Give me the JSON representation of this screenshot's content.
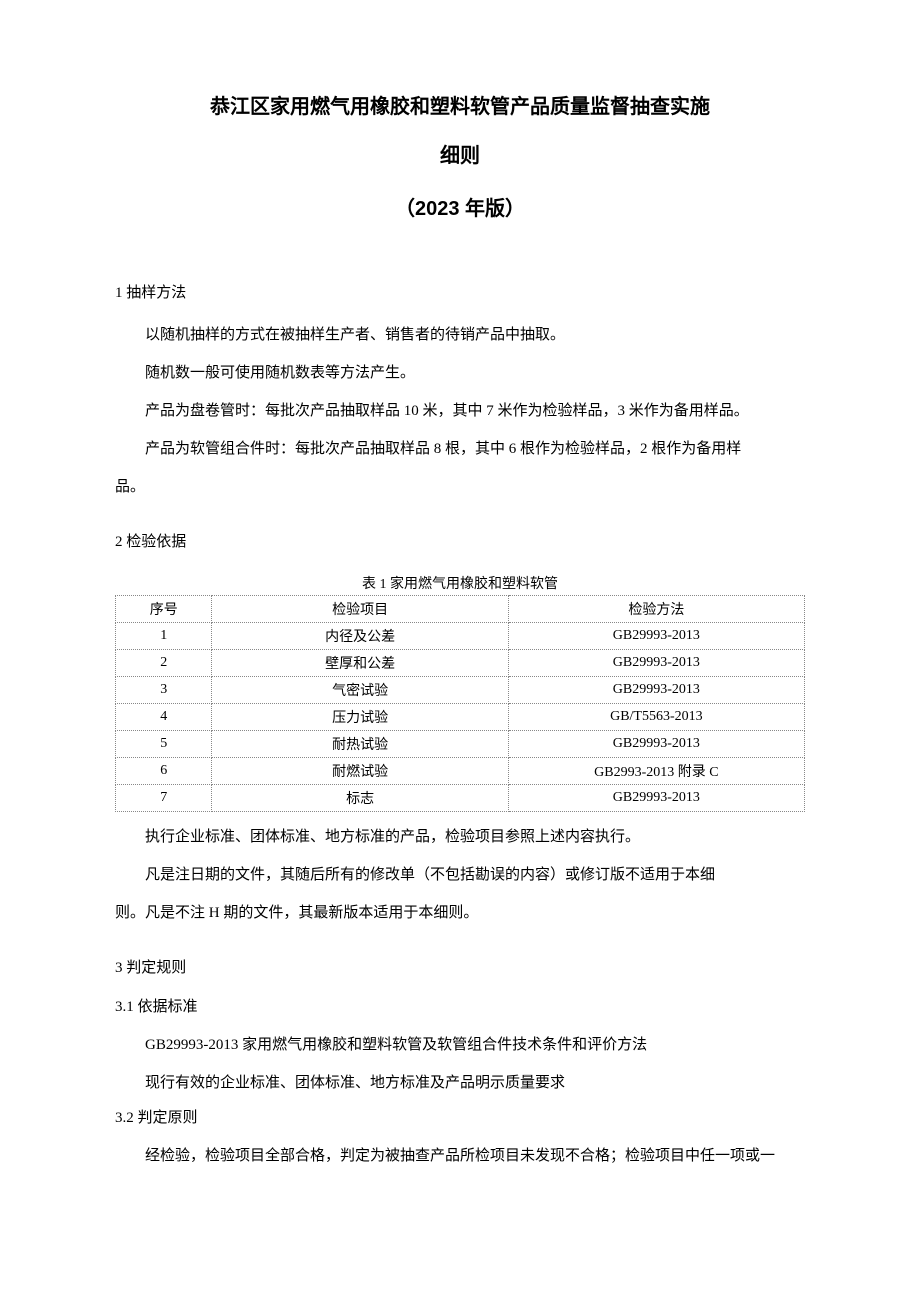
{
  "title": {
    "line1": "恭江区家用燃气用橡胶和塑料软管产品质量监督抽查实施",
    "line2": "细则",
    "version": "（2023 年版）"
  },
  "section1": {
    "heading": "1 抽样方法",
    "p1": "以随机抽样的方式在被抽样生产者、销售者的待销产品中抽取。",
    "p2": "随机数一般可使用随机数表等方法产生。",
    "p3": "产品为盘卷管时：每批次产品抽取样品 10 米，其中 7 米作为检验样品，3 米作为备用样品。",
    "p4": "产品为软管组合件时：每批次产品抽取样品 8 根，其中 6 根作为检验样品，2 根作为备用样",
    "p4_cont": "品。"
  },
  "section2": {
    "heading": "2 检验依据",
    "table_caption": "表 1 家用燃气用橡胶和塑料软管",
    "table": {
      "headers": {
        "seq": "序号",
        "item": "检验项目",
        "method": "检验方法"
      },
      "rows": [
        {
          "seq": "1",
          "item": "内径及公差",
          "method": "GB29993-2013"
        },
        {
          "seq": "2",
          "item": "壁厚和公差",
          "method": "GB29993-2013"
        },
        {
          "seq": "3",
          "item": "气密试验",
          "method": "GB29993-2013"
        },
        {
          "seq": "4",
          "item": "压力试验",
          "method": "GB/T5563-2013"
        },
        {
          "seq": "5",
          "item": "耐热试验",
          "method": "GB29993-2013"
        },
        {
          "seq": "6",
          "item": "耐燃试验",
          "method": "GB2993-2013 附录 C"
        },
        {
          "seq": "7",
          "item": "标志",
          "method": "GB29993-2013"
        }
      ]
    },
    "p1": "执行企业标准、团体标准、地方标准的产品，检验项目参照上述内容执行。",
    "p2": "凡是注日期的文件，其随后所有的修改单（不包括勘误的内容）或修订版不适用于本细",
    "p2_cont": "则。凡是不注 H 期的文件，其最新版本适用于本细则。"
  },
  "section3": {
    "heading": "3 判定规则",
    "sub1": {
      "heading": "3.1  依据标准",
      "p1": "GB29993-2013 家用燃气用橡胶和塑料软管及软管组合件技术条件和评价方法",
      "p2": "现行有效的企业标准、团体标准、地方标准及产品明示质量要求"
    },
    "sub2": {
      "heading": "3.2  判定原则",
      "p1": "经检验，检验项目全部合格，判定为被抽查产品所检项目未发现不合格；检验项目中任一项或一"
    }
  },
  "colors": {
    "text": "#000000",
    "background": "#ffffff",
    "table_border": "#888888"
  }
}
